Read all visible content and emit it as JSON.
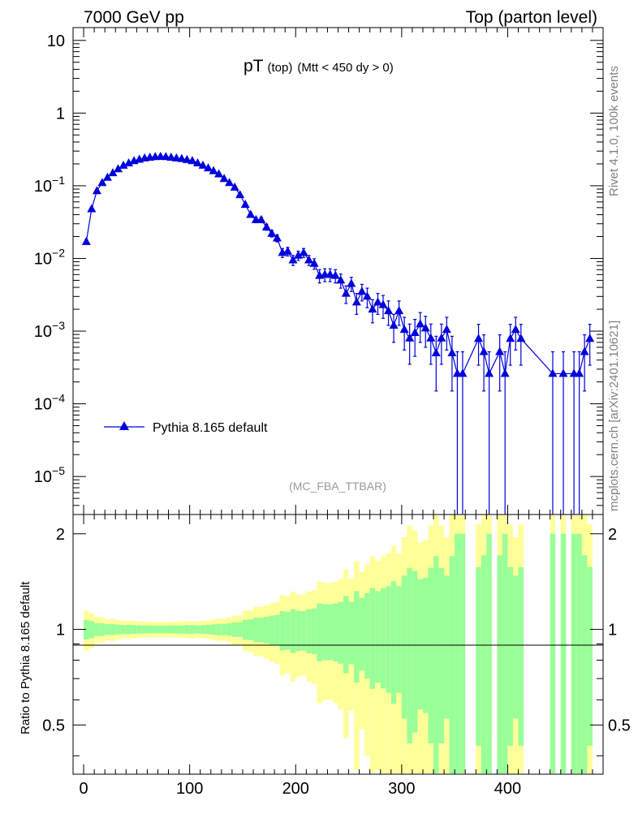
{
  "header": {
    "left": "7000 GeV pp",
    "right": "Top (parton level)"
  },
  "side_text": {
    "rivet": "Rivet 4.1.0,  100k events",
    "mcplots": "mcplots.cern.ch [arXiv:2401.10621]"
  },
  "chart_data": {
    "type": "line",
    "title": "pT",
    "title_sub": "(top)",
    "title_extra": "(Mtt < 450 dy > 0)",
    "analysis": "(MC_FBA_TTBAR)",
    "legend": "Pythia 8.165 default",
    "legend_placement": "bottom-left",
    "xlim": [
      -10,
      490
    ],
    "ylim_log": [
      3e-06,
      15
    ],
    "x_ticks": [
      "0",
      "100",
      "200",
      "300",
      "400"
    ],
    "y_ticks": [
      {
        "mant": "10",
        "exp": "−5",
        "value": 1e-05
      },
      {
        "mant": "10",
        "exp": "−4",
        "value": 0.0001
      },
      {
        "mant": "10",
        "exp": "−3",
        "value": 0.001
      },
      {
        "mant": "10",
        "exp": "−2",
        "value": 0.01
      },
      {
        "mant": "10",
        "exp": "−1",
        "value": 0.1
      },
      {
        "mant": "1",
        "exp": "",
        "value": 1
      },
      {
        "mant": "10",
        "exp": "",
        "value": 10
      }
    ],
    "series": [
      {
        "name": "Pythia 8.165 default",
        "color": "#0000dd",
        "x": [
          2.5,
          7.5,
          12.5,
          17.5,
          22.5,
          27.5,
          32.5,
          37.5,
          42.5,
          47.5,
          52.5,
          57.5,
          62.5,
          67.5,
          72.5,
          77.5,
          82.5,
          87.5,
          92.5,
          97.5,
          102.5,
          107.5,
          112.5,
          117.5,
          122.5,
          127.5,
          132.5,
          137.5,
          142.5,
          147.5,
          152.5,
          157.5,
          162.5,
          167.5,
          172.5,
          177.5,
          182.5,
          187.5,
          192.5,
          197.5,
          202.5,
          207.5,
          212.5,
          217.5,
          222.5,
          227.5,
          232.5,
          237.5,
          242.5,
          247.5,
          252.5,
          257.5,
          262.5,
          267.5,
          272.5,
          277.5,
          282.5,
          287.5,
          292.5,
          297.5,
          302.5,
          307.5,
          312.5,
          317.5,
          322.5,
          327.5,
          332.5,
          337.5,
          342.5,
          347.5,
          352.5,
          357.5,
          372.5,
          377.5,
          382.5,
          392.5,
          397.5,
          402.5,
          407.5,
          412.5,
          442.5,
          452.5,
          462.5,
          467.5,
          472.5,
          477.5
        ],
        "y": [
          0.017,
          0.048,
          0.085,
          0.11,
          0.13,
          0.15,
          0.17,
          0.19,
          0.205,
          0.22,
          0.23,
          0.24,
          0.245,
          0.25,
          0.252,
          0.25,
          0.245,
          0.24,
          0.235,
          0.228,
          0.22,
          0.205,
          0.19,
          0.175,
          0.16,
          0.145,
          0.125,
          0.11,
          0.095,
          0.075,
          0.055,
          0.04,
          0.034,
          0.034,
          0.027,
          0.022,
          0.019,
          0.012,
          0.0125,
          0.0095,
          0.011,
          0.012,
          0.0095,
          0.0085,
          0.0058,
          0.006,
          0.006,
          0.0058,
          0.005,
          0.0033,
          0.0045,
          0.0025,
          0.0035,
          0.003,
          0.002,
          0.0025,
          0.0023,
          0.0019,
          0.0012,
          0.0019,
          0.00105,
          0.0008,
          0.00095,
          0.00125,
          0.0011,
          0.0008,
          0.0005,
          0.0008,
          0.00105,
          0.0005,
          0.00026,
          0.00026,
          0.00079,
          0.00052,
          0.00026,
          0.00052,
          0.00026,
          0.00079,
          0.00105,
          0.00079,
          0.00026,
          0.00026,
          0.00026,
          0.00026,
          0.00052,
          0.00079
        ],
        "err": [
          0.0012,
          0.003,
          0.004,
          0.005,
          0.005,
          0.006,
          0.006,
          0.006,
          0.007,
          0.007,
          0.007,
          0.007,
          0.007,
          0.007,
          0.007,
          0.007,
          0.007,
          0.007,
          0.007,
          0.007,
          0.007,
          0.006,
          0.006,
          0.006,
          0.006,
          0.006,
          0.005,
          0.005,
          0.005,
          0.004,
          0.004,
          0.003,
          0.003,
          0.003,
          0.0026,
          0.0023,
          0.0021,
          0.0017,
          0.0017,
          0.0015,
          0.0016,
          0.0017,
          0.0015,
          0.0014,
          0.0012,
          0.0012,
          0.0012,
          0.0012,
          0.0011,
          0.0009,
          0.001,
          0.0008,
          0.0009,
          0.0009,
          0.0007,
          0.0008,
          0.0008,
          0.0007,
          0.0005,
          0.0007,
          0.0005,
          0.00045,
          0.0005,
          0.00055,
          0.0005,
          0.00045,
          0.00035,
          0.00045,
          0.0005,
          0.00035,
          0.00026,
          0.00026,
          0.00045,
          0.00037,
          0.00026,
          0.00037,
          0.00026,
          0.00045,
          0.0005,
          0.00045,
          0.00026,
          0.00026,
          0.00026,
          0.00026,
          0.00037,
          0.00045
        ]
      }
    ],
    "ratio": {
      "ylabel": "Ratio to Pythia 8.165 default",
      "ylim": [
        0.35,
        2.3
      ],
      "y_ticks": [
        "0.5",
        "1",
        "2"
      ],
      "green_band": "stat. uncertainty",
      "yellow_band": "2× stat. uncertainty",
      "colors": {
        "green": "#99ff99",
        "yellow": "#ffff99",
        "line": "#000000"
      }
    }
  }
}
